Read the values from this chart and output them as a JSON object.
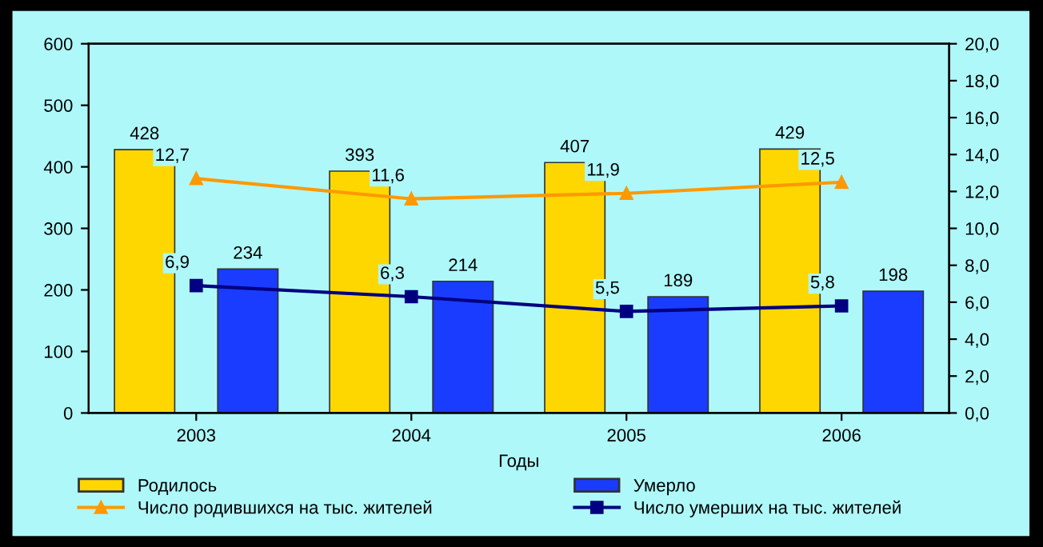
{
  "chart_data": {
    "type": "bar",
    "xlabel": "Годы",
    "categories": [
      "2003",
      "2004",
      "2005",
      "2006"
    ],
    "series": [
      {
        "name": "Родилось",
        "color": "#ffd700",
        "values": [
          428,
          393,
          407,
          429
        ]
      },
      {
        "name": "Умерло",
        "color": "#1a3cff",
        "values": [
          234,
          214,
          189,
          198
        ]
      },
      {
        "name": "Число родившихся на тыс. жителей",
        "type": "line",
        "axis": "y2",
        "marker": "triangle",
        "color": "#ff9900",
        "values": [
          12.7,
          11.6,
          11.9,
          12.5
        ],
        "value_labels": [
          "12,7",
          "11,6",
          "11,9",
          "12,5"
        ]
      },
      {
        "name": "Число умерших на тыс. жителей",
        "type": "line",
        "axis": "y2",
        "marker": "square",
        "color": "#000080",
        "values": [
          6.9,
          6.3,
          5.5,
          5.8
        ],
        "value_labels": [
          "6,9",
          "6,3",
          "5,5",
          "5,8"
        ]
      }
    ],
    "ylim": [
      0,
      600
    ],
    "yticks": [
      0,
      100,
      200,
      300,
      400,
      500,
      600
    ],
    "y2lim": [
      0,
      20
    ],
    "y2ticks": [
      {
        "value": 0,
        "label": "0,0"
      },
      {
        "value": 2,
        "label": "2,0"
      },
      {
        "value": 4,
        "label": "4,0"
      },
      {
        "value": 6,
        "label": "6,0"
      },
      {
        "value": 8,
        "label": "8,0"
      },
      {
        "value": 10,
        "label": "10,0"
      },
      {
        "value": 12,
        "label": "12,0"
      },
      {
        "value": 14,
        "label": "14,0"
      },
      {
        "value": 16,
        "label": "16,0"
      },
      {
        "value": 18,
        "label": "18,0"
      },
      {
        "value": 20,
        "label": "20,0"
      }
    ],
    "data_labels": true,
    "legend": "bottom",
    "grid": false,
    "line_style": "solid"
  }
}
